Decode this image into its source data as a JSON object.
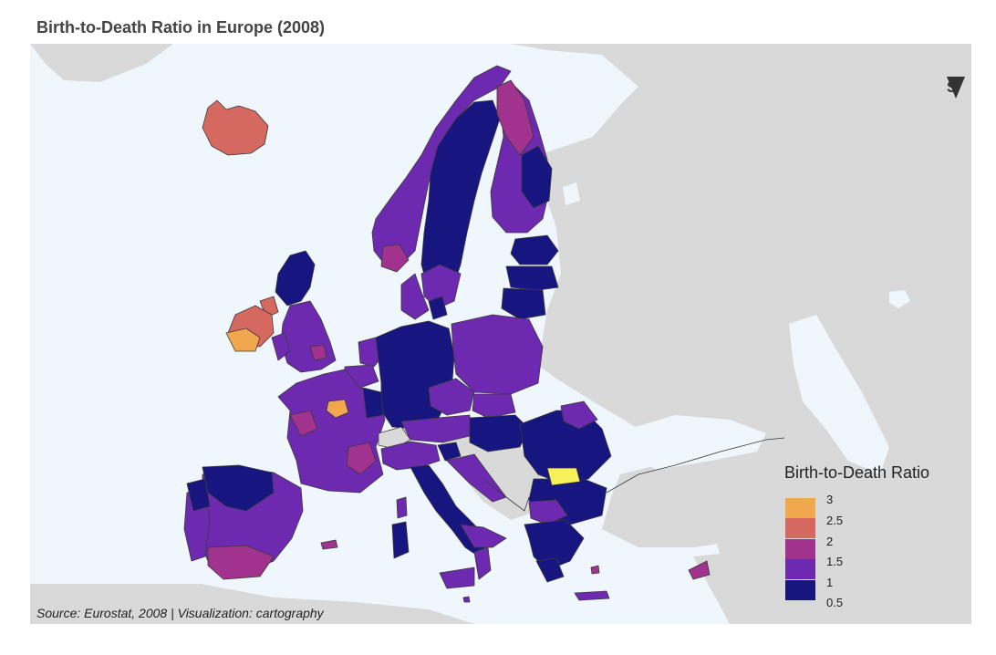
{
  "title": "Birth-to-Death Ratio in Europe (2008)",
  "compass": {
    "letter": "S",
    "icon": "south-arrow-icon"
  },
  "legend": {
    "title": "Birth-to-Death Ratio",
    "entries": [
      {
        "label": "3",
        "color": "#F1A74E"
      },
      {
        "label": "2.5",
        "color": "#D5695F"
      },
      {
        "label": "2",
        "color": "#A1338E"
      },
      {
        "label": "1.5",
        "color": "#6E29B1"
      },
      {
        "label": "1",
        "color": "#17157F"
      },
      {
        "label": "0.5",
        "color": ""
      }
    ]
  },
  "source": "Source: Eurostat, 2008 | Visualization: cartography",
  "colors": {
    "sea": "#EFF6FC",
    "land_outside": "#D9D9D9",
    "high_outlier": "#F7F059",
    "region_border": "#3A3A3A"
  }
}
